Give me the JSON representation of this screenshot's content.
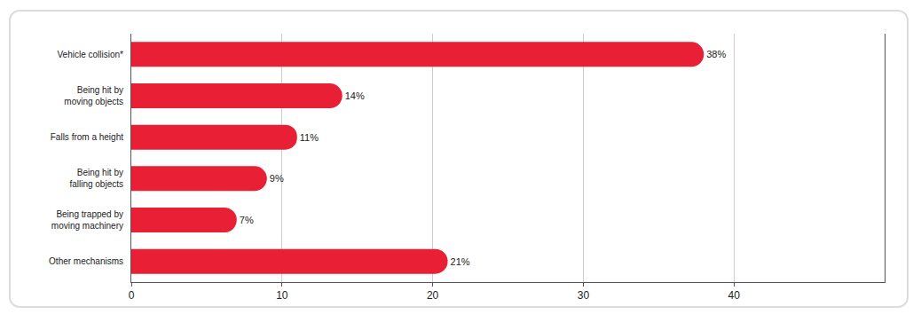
{
  "chart_data": {
    "type": "bar",
    "orientation": "horizontal",
    "categories": [
      "Vehicle collision*",
      "Being hit by moving objects",
      "Falls from a height",
      "Being hit by falling objects",
      "Being trapped by moving machinery",
      "Other mechanisms"
    ],
    "values": [
      38,
      14,
      11,
      9,
      7,
      21
    ],
    "value_labels": [
      "38%",
      "14%",
      "11%",
      "9%",
      "7%",
      "21%"
    ],
    "color": "#e81f35",
    "xlim": [
      0,
      50
    ],
    "xticks": [
      0,
      10,
      20,
      30,
      40
    ],
    "grid": true,
    "data_labels": true
  }
}
